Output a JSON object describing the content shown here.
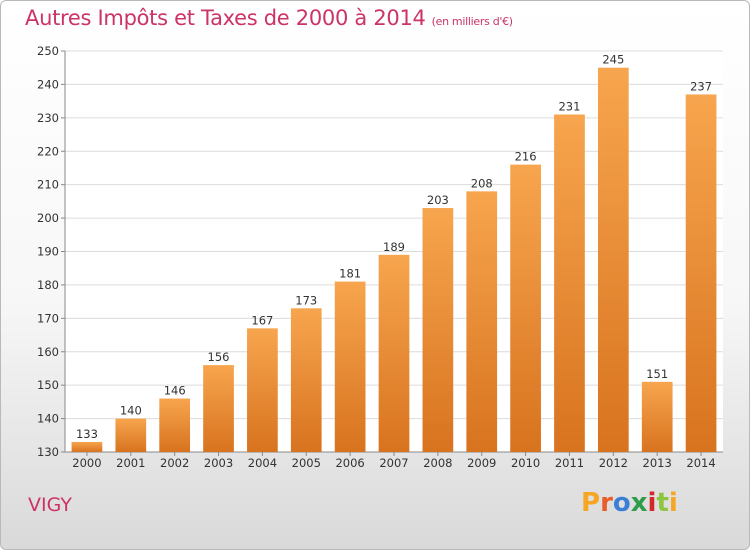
{
  "header": {
    "title": "Autres Impôts et Taxes de 2000 à 2014",
    "unit_note": "(en milliers d'€)"
  },
  "footer": {
    "town": "VIGY",
    "brand": "Proxiti",
    "brand_colors": [
      "#f5a623",
      "#e85d2a",
      "#3a7fd5",
      "#2e9c4a",
      "#d4292a",
      "#8cc63f",
      "#f5a623"
    ]
  },
  "chart_data": {
    "type": "bar",
    "title": "Autres Impôts et Taxes de 2000 à 2014",
    "subtitle": "(en milliers d'€)",
    "categories": [
      "2000",
      "2001",
      "2002",
      "2003",
      "2004",
      "2005",
      "2006",
      "2007",
      "2008",
      "2009",
      "2010",
      "2011",
      "2012",
      "2013",
      "2014"
    ],
    "values": [
      133,
      140,
      146,
      156,
      167,
      173,
      181,
      189,
      203,
      208,
      216,
      231,
      245,
      151,
      237
    ],
    "ylim": [
      130,
      250
    ],
    "yticks": [
      130,
      140,
      150,
      160,
      170,
      180,
      190,
      200,
      210,
      220,
      230,
      240,
      250
    ],
    "grid": true,
    "bar_color_top": "#f7a54e",
    "bar_color_bottom": "#d8731f",
    "xlabel": "",
    "ylabel": ""
  }
}
